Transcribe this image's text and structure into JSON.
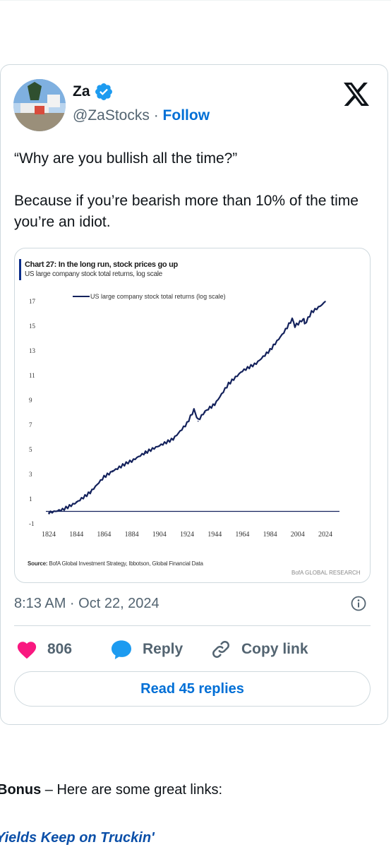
{
  "tweet": {
    "author_name": "Za",
    "handle": "@ZaStocks",
    "separator": "·",
    "follow_label": "Follow",
    "text_line1": "“Why are you bullish all the time?”",
    "text_line2": "Because if you’re bearish more than 10% of the time you’re an idiot.",
    "timestamp": "8:13 AM · Oct 22, 2024",
    "like_count": "806",
    "reply_label": "Reply",
    "copy_link_label": "Copy link",
    "read_replies_label": "Read 45 replies",
    "icons": [
      "avatar",
      "verified-badge-icon",
      "x-logo-icon",
      "info-icon",
      "heart-icon",
      "reply-bubble-icon",
      "link-icon"
    ],
    "colors": {
      "accent": "#006fd6",
      "like": "#f91880",
      "text": "#0f1419",
      "muted": "#536471",
      "border": "#cfd9de"
    }
  },
  "chart_data": {
    "type": "line",
    "title": "Chart 27: In the long run, stock prices go up",
    "subtitle": "US large company stock total returns, log scale",
    "series": [
      {
        "name": "US large company stock total returns (log scale)",
        "x": [
          1824,
          1834,
          1844,
          1854,
          1864,
          1870,
          1880,
          1884,
          1894,
          1904,
          1914,
          1924,
          1929,
          1932,
          1937,
          1944,
          1954,
          1964,
          1974,
          1984,
          1994,
          2000,
          2002,
          2008,
          2009,
          2014,
          2024
        ],
        "values": [
          -0.1,
          0.2,
          0.8,
          1.6,
          2.8,
          3.3,
          3.9,
          4.0,
          4.7,
          5.3,
          5.9,
          7.2,
          8.3,
          7.3,
          8.0,
          8.7,
          10.3,
          11.3,
          11.9,
          13.0,
          14.5,
          15.5,
          15.0,
          15.6,
          15.2,
          16.2,
          17.0
        ]
      }
    ],
    "xticks": [
      "1824",
      "1844",
      "1864",
      "1884",
      "1904",
      "1924",
      "1944",
      "1964",
      "1984",
      "2004",
      "2024"
    ],
    "yticks": [
      "-1",
      "1",
      "3",
      "5",
      "7",
      "9",
      "11",
      "13",
      "15",
      "17"
    ],
    "xlim": [
      1824,
      2024
    ],
    "ylim": [
      -1,
      17
    ],
    "grid": false,
    "legend": "top-left",
    "source_label": "Source:",
    "source_text": "BofA Global Investment Strategy, Ibbotson, Global Financial Data",
    "brand": "BofA GLOBAL RESEARCH",
    "line_color": "#14225c"
  },
  "article": {
    "bonus_label": "Bonus",
    "bonus_text": " – Here are some great links:",
    "link_title": "Yields Keep on Truckin'"
  }
}
